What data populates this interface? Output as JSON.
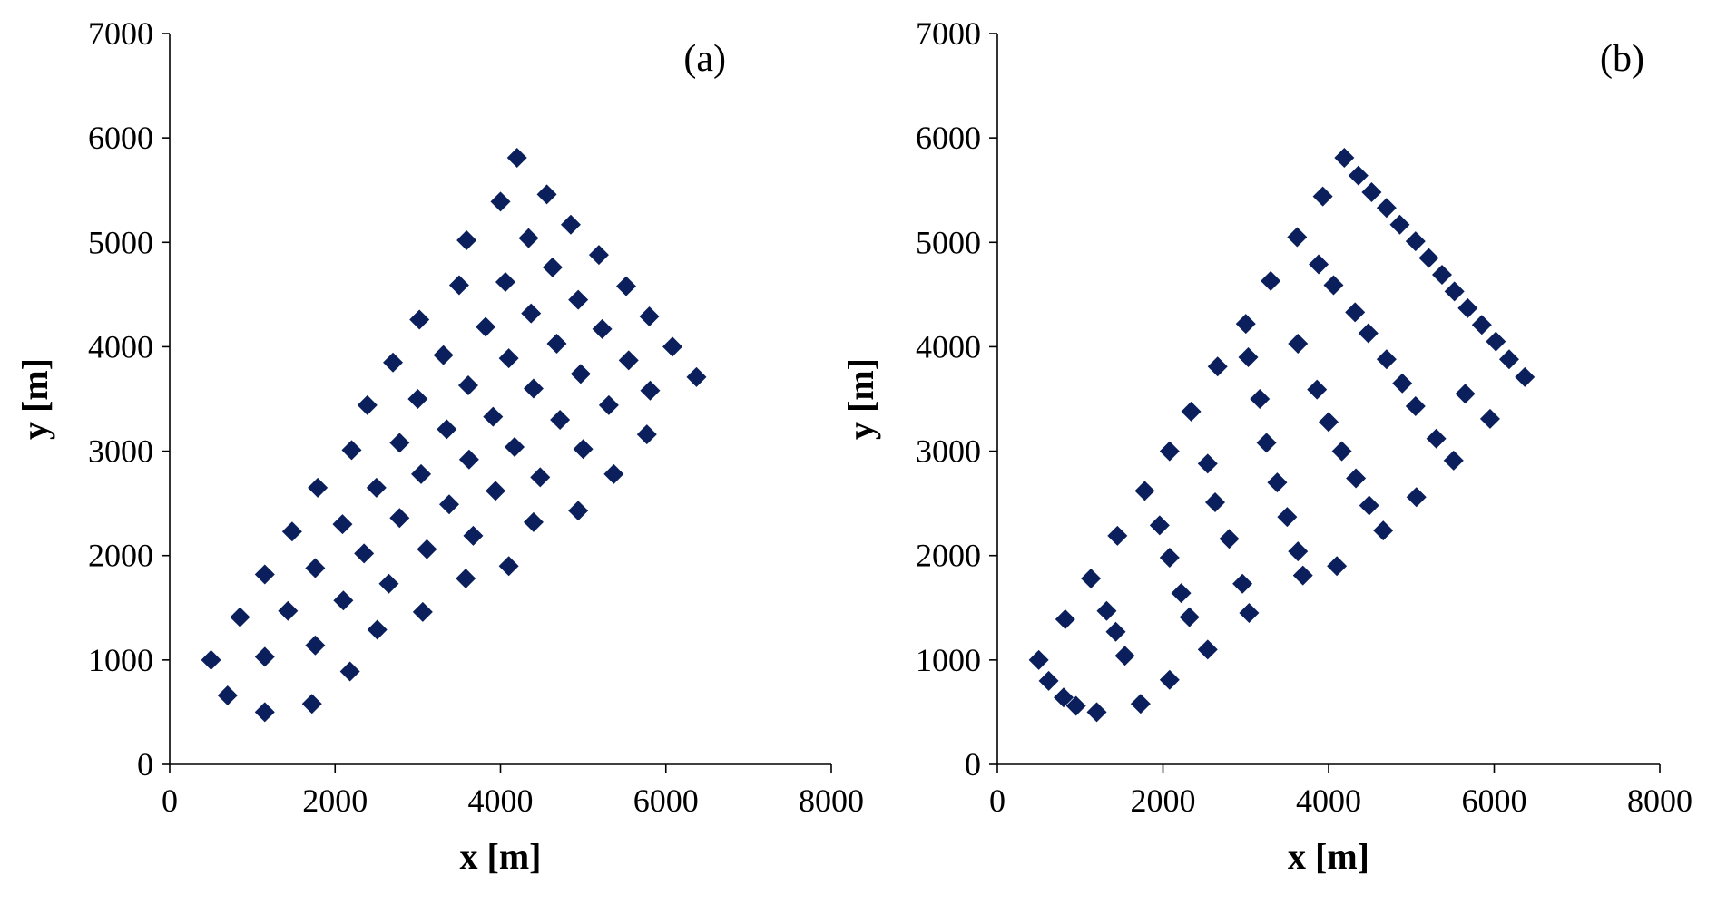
{
  "chart_data": [
    {
      "type": "scatter",
      "panel_label": "(a)",
      "xlabel": "x [m]",
      "ylabel": "y [m]",
      "xlim": [
        0,
        8000
      ],
      "ylim": [
        0,
        7000
      ],
      "xticks": [
        0,
        2000,
        4000,
        6000,
        8000
      ],
      "yticks": [
        0,
        1000,
        2000,
        3000,
        4000,
        5000,
        6000,
        7000
      ],
      "grid": false,
      "marker_color": "#0a1f5c",
      "marker": "diamond",
      "series": [
        {
          "points": [
            [
              500,
              1000
            ],
            [
              700,
              660
            ],
            [
              850,
              1410
            ],
            [
              1150,
              500
            ],
            [
              1150,
              1030
            ],
            [
              1150,
              1820
            ],
            [
              1430,
              1470
            ],
            [
              1480,
              2230
            ],
            [
              1720,
              580
            ],
            [
              1760,
              1140
            ],
            [
              1760,
              1880
            ],
            [
              1790,
              2650
            ],
            [
              2090,
              2300
            ],
            [
              2100,
              1570
            ],
            [
              2180,
              890
            ],
            [
              2200,
              3010
            ],
            [
              2350,
              2020
            ],
            [
              2500,
              2650
            ],
            [
              2510,
              1290
            ],
            [
              2390,
              3440
            ],
            [
              2650,
              1730
            ],
            [
              2700,
              3850
            ],
            [
              2780,
              3080
            ],
            [
              2780,
              2360
            ],
            [
              3020,
              4260
            ],
            [
              3000,
              3500
            ],
            [
              3040,
              2780
            ],
            [
              3060,
              1460
            ],
            [
              3110,
              2060
            ],
            [
              3310,
              3920
            ],
            [
              3350,
              3210
            ],
            [
              3380,
              2490
            ],
            [
              3500,
              4590
            ],
            [
              3580,
              1780
            ],
            [
              3590,
              5020
            ],
            [
              3610,
              3630
            ],
            [
              3620,
              2920
            ],
            [
              3670,
              2190
            ],
            [
              3820,
              4190
            ],
            [
              3910,
              3330
            ],
            [
              3940,
              2620
            ],
            [
              4000,
              5390
            ],
            [
              4060,
              4620
            ],
            [
              4100,
              1900
            ],
            [
              4100,
              3890
            ],
            [
              4170,
              3040
            ],
            [
              4200,
              5810
            ],
            [
              4340,
              5040
            ],
            [
              4370,
              4320
            ],
            [
              4400,
              3600
            ],
            [
              4400,
              2320
            ],
            [
              4480,
              2750
            ],
            [
              4560,
              5460
            ],
            [
              4630,
              4760
            ],
            [
              4680,
              4030
            ],
            [
              4720,
              3300
            ],
            [
              4850,
              5170
            ],
            [
              4940,
              4450
            ],
            [
              4940,
              2430
            ],
            [
              4970,
              3740
            ],
            [
              5000,
              3020
            ],
            [
              5190,
              4880
            ],
            [
              5230,
              4170
            ],
            [
              5310,
              3440
            ],
            [
              5370,
              2780
            ],
            [
              5520,
              4580
            ],
            [
              5550,
              3870
            ],
            [
              5800,
              4290
            ],
            [
              5810,
              3580
            ],
            [
              5770,
              3160
            ],
            [
              6080,
              4000
            ],
            [
              6370,
              3710
            ]
          ]
        }
      ]
    },
    {
      "type": "scatter",
      "panel_label": "(b)",
      "xlabel": "x [m]",
      "ylabel": "y [m]",
      "xlim": [
        0,
        8000
      ],
      "ylim": [
        0,
        7000
      ],
      "xticks": [
        0,
        2000,
        4000,
        6000,
        8000
      ],
      "yticks": [
        0,
        1000,
        2000,
        3000,
        4000,
        5000,
        6000,
        7000
      ],
      "grid": false,
      "marker_color": "#0a1f5c",
      "marker": "diamond",
      "series": [
        {
          "points": [
            [
              500,
              1000
            ],
            [
              620,
              800
            ],
            [
              800,
              640
            ],
            [
              950,
              560
            ],
            [
              1200,
              500
            ],
            [
              820,
              1390
            ],
            [
              1130,
              1780
            ],
            [
              1320,
              1470
            ],
            [
              1430,
              1270
            ],
            [
              1450,
              2190
            ],
            [
              1540,
              1040
            ],
            [
              1730,
              580
            ],
            [
              1780,
              2620
            ],
            [
              1960,
              2290
            ],
            [
              2080,
              3000
            ],
            [
              2080,
              1980
            ],
            [
              2080,
              810
            ],
            [
              2220,
              1640
            ],
            [
              2320,
              1410
            ],
            [
              2340,
              3380
            ],
            [
              2540,
              1100
            ],
            [
              2540,
              2880
            ],
            [
              2630,
              2510
            ],
            [
              2660,
              3810
            ],
            [
              2800,
              2160
            ],
            [
              2960,
              1730
            ],
            [
              3000,
              4220
            ],
            [
              3030,
              3900
            ],
            [
              3040,
              1450
            ],
            [
              3170,
              3500
            ],
            [
              3250,
              3080
            ],
            [
              3300,
              4630
            ],
            [
              3380,
              2700
            ],
            [
              3500,
              2370
            ],
            [
              3620,
              5050
            ],
            [
              3630,
              2040
            ],
            [
              3630,
              4030
            ],
            [
              3690,
              1810
            ],
            [
              3860,
              3590
            ],
            [
              3880,
              4790
            ],
            [
              3930,
              5440
            ],
            [
              4000,
              3280
            ],
            [
              4060,
              4590
            ],
            [
              4100,
              1900
            ],
            [
              4160,
              3000
            ],
            [
              4190,
              5810
            ],
            [
              4320,
              4330
            ],
            [
              4330,
              2740
            ],
            [
              4360,
              5640
            ],
            [
              4480,
              4130
            ],
            [
              4490,
              2480
            ],
            [
              4520,
              5480
            ],
            [
              4660,
              2240
            ],
            [
              4700,
              3880
            ],
            [
              4700,
              5330
            ],
            [
              4860,
              5170
            ],
            [
              4890,
              3650
            ],
            [
              5050,
              5010
            ],
            [
              5050,
              3430
            ],
            [
              5060,
              2560
            ],
            [
              5210,
              4850
            ],
            [
              5300,
              3120
            ],
            [
              5370,
              4690
            ],
            [
              5520,
              4530
            ],
            [
              5510,
              2910
            ],
            [
              5650,
              3550
            ],
            [
              5680,
              4370
            ],
            [
              5850,
              4210
            ],
            [
              5950,
              3310
            ],
            [
              6020,
              4050
            ],
            [
              6180,
              3880
            ],
            [
              6370,
              3710
            ]
          ]
        }
      ]
    }
  ]
}
